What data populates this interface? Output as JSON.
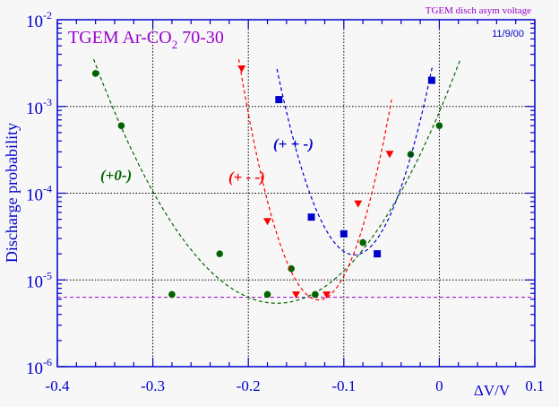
{
  "chart_data": {
    "type": "scatter",
    "title": "TGEM    Ar-CO",
    "title_sub": "2",
    "title_rest": " 70-30",
    "corner_title": "TGEM disch asym voltage",
    "date": "11/9/00",
    "xlabel": "ΔV/V",
    "ylabel": "Discharge probability",
    "xlim": [
      -0.4,
      0.1
    ],
    "ylim": [
      1e-06,
      0.01
    ],
    "yscale": "log",
    "grid": true,
    "x_ticks": [
      {
        "v": -0.4,
        "label": "-0.4"
      },
      {
        "v": -0.3,
        "label": "-0.3"
      },
      {
        "v": -0.2,
        "label": "-0.2"
      },
      {
        "v": -0.1,
        "label": "-0.1"
      },
      {
        "v": 0,
        "label": "0"
      },
      {
        "v": 0.1,
        "label": "0.1"
      }
    ],
    "y_ticks": [
      {
        "v": 0.01,
        "base": "10",
        "exp": "-2"
      },
      {
        "v": 0.001,
        "base": "10",
        "exp": "-3"
      },
      {
        "v": 0.0001,
        "base": "10",
        "exp": "-4"
      },
      {
        "v": 1e-05,
        "base": "10",
        "exp": "-5"
      },
      {
        "v": 1e-06,
        "base": "10",
        "exp": "-6"
      }
    ],
    "reference_line": {
      "y": 6.3e-06,
      "color": "#9900cc"
    },
    "series": [
      {
        "name": "(+0-)",
        "color": "#006400",
        "marker": "circle",
        "x": [
          -0.36,
          -0.333,
          -0.28,
          -0.23,
          -0.18,
          -0.155,
          -0.13,
          -0.08,
          -0.03,
          0.0
        ],
        "y": [
          0.0024,
          0.0006,
          6.8e-06,
          2e-05,
          6.8e-06,
          1.35e-05,
          6.8e-06,
          2.7e-05,
          0.00028,
          0.0006
        ],
        "fit": {
          "x": [
            -0.362,
            -0.2,
            0.022
          ],
          "y": [
            0.0035,
            6.3e-06,
            0.0035
          ]
        }
      },
      {
        "name": "(+ - -)",
        "color": "#ff0000",
        "marker": "triangle-down",
        "x": [
          -0.207,
          -0.18,
          -0.15,
          -0.118,
          -0.085,
          -0.052
        ],
        "y": [
          0.0027,
          4.7e-05,
          6.7e-06,
          6.7e-06,
          7.5e-05,
          0.00028
        ],
        "fit": {
          "x": [
            -0.21,
            -0.135,
            -0.05
          ],
          "y": [
            0.0035,
            6.3e-06,
            0.0012
          ]
        }
      },
      {
        "name": "(+ + -)",
        "color": "#0000cc",
        "marker": "square",
        "x": [
          -0.168,
          -0.134,
          -0.1,
          -0.065,
          -0.008
        ],
        "y": [
          0.0012,
          5.3e-05,
          3.4e-05,
          2e-05,
          0.002
        ],
        "fit": {
          "x": [
            -0.17,
            -0.095,
            -0.007
          ],
          "y": [
            0.0027,
            2e-05,
            0.003
          ]
        }
      }
    ]
  },
  "colors": {
    "axis": "#0000cc",
    "title": "#9900cc",
    "background": "#f7f7f7"
  }
}
